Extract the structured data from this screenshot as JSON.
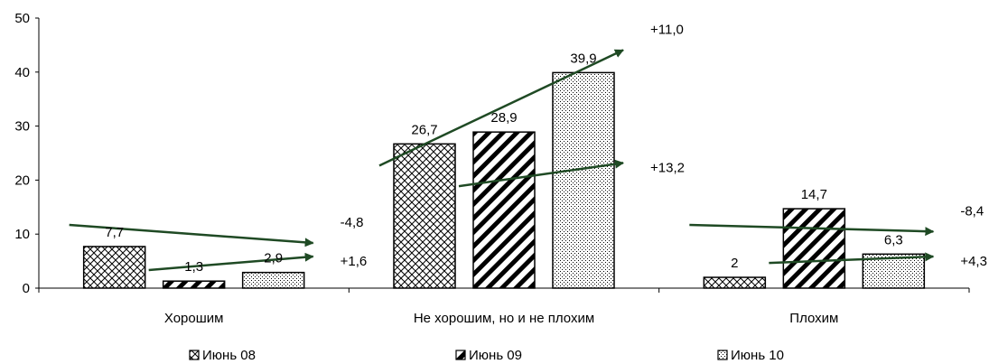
{
  "chart_data": {
    "type": "bar",
    "categories": [
      "Хорошим",
      "Не хорошим, но и не плохим",
      "Плохим"
    ],
    "series": [
      {
        "name": "Июнь 08",
        "pattern": "crosshatch",
        "values": [
          7.7,
          26.7,
          2
        ]
      },
      {
        "name": "Июнь 09",
        "pattern": "diagonal",
        "values": [
          1.3,
          28.9,
          14.7
        ]
      },
      {
        "name": "Июнь 10",
        "pattern": "dotted",
        "values": [
          2.9,
          39.9,
          6.3
        ]
      }
    ],
    "value_labels": [
      [
        "7,7",
        "26,7",
        "2"
      ],
      [
        "1,3",
        "28,9",
        "14,7"
      ],
      [
        "2,9",
        "39,9",
        "6,3"
      ]
    ],
    "ylim": [
      0,
      50
    ],
    "yticks": [
      0,
      10,
      20,
      30,
      40,
      50
    ],
    "ytick_labels": [
      "0",
      "10",
      "20",
      "30",
      "40",
      "50"
    ],
    "grid": false,
    "legend_position": "bottom",
    "arrow_color": "#1f4a24",
    "change_annotations": [
      {
        "category": 0,
        "upper": "-4,8",
        "lower": "+1,6"
      },
      {
        "category": 1,
        "upper": "+11,0",
        "lower": "+13,2"
      },
      {
        "category": 2,
        "upper": "-8,4",
        "lower": "+4,3"
      }
    ]
  }
}
